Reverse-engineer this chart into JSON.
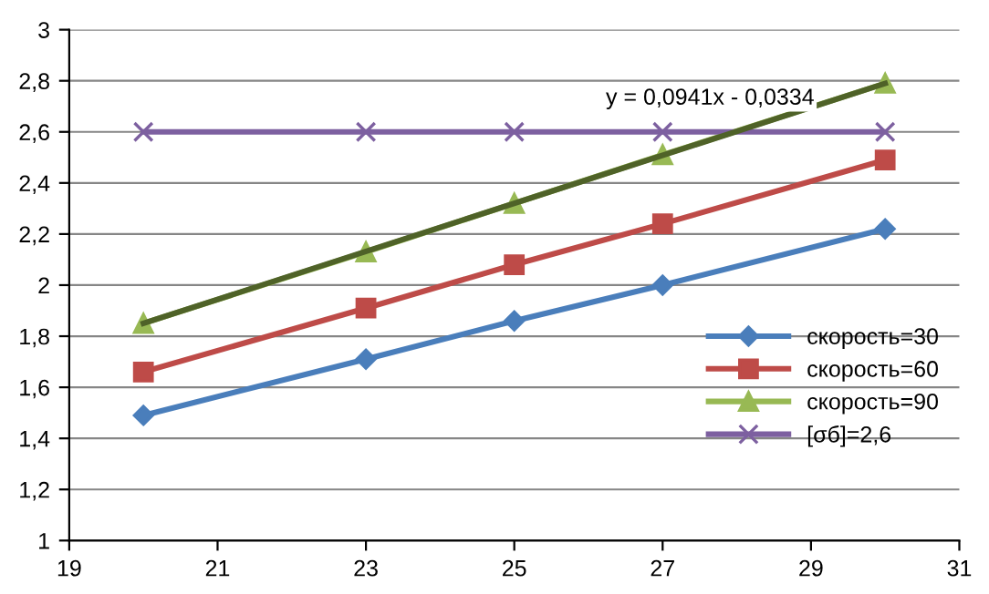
{
  "chart_data": {
    "type": "line",
    "x": [
      20,
      23,
      25,
      27,
      30
    ],
    "series": [
      {
        "name": "скорость=30",
        "color": "#4a7ebb",
        "marker": "diamond",
        "values": [
          1.49,
          1.71,
          1.86,
          2.0,
          2.22
        ]
      },
      {
        "name": "скорость=60",
        "color": "#be4b48",
        "marker": "square",
        "values": [
          1.66,
          1.91,
          2.08,
          2.24,
          2.49
        ]
      },
      {
        "name": "скорость=90",
        "color": "#98b954",
        "marker": "triangle",
        "values": [
          1.85,
          2.13,
          2.32,
          2.51,
          2.79
        ]
      },
      {
        "name": "[σб]=2,6",
        "color": "#7d60a0",
        "marker": "cross",
        "values": [
          2.6,
          2.6,
          2.6,
          2.6,
          2.6
        ]
      },
      {
        "type": "line",
        "color": "#4f6228",
        "marker": "none",
        "x": [
          20,
          30
        ],
        "values": [
          1.85,
          2.79
        ]
      }
    ],
    "annotations": [
      "y = 0,0941x - 0,0334"
    ],
    "xlim": [
      19,
      31
    ],
    "xticks": [
      19,
      21,
      23,
      25,
      27,
      29,
      31
    ],
    "ylim": [
      1,
      3
    ],
    "yticks": [
      1,
      {
        "value": 1.2,
        "label": "1,2"
      },
      {
        "value": 1.4,
        "label": "1,4"
      },
      {
        "value": 1.6,
        "label": "1,6"
      },
      {
        "value": 1.8,
        "label": "1,8"
      },
      2,
      {
        "value": 2.2,
        "label": "2,2"
      },
      {
        "value": 2.4,
        "label": "2,4"
      },
      {
        "value": 2.6,
        "label": "2,6"
      },
      {
        "value": 2.8,
        "label": "2,8"
      },
      3
    ],
    "grid": "y",
    "legend": "right"
  }
}
